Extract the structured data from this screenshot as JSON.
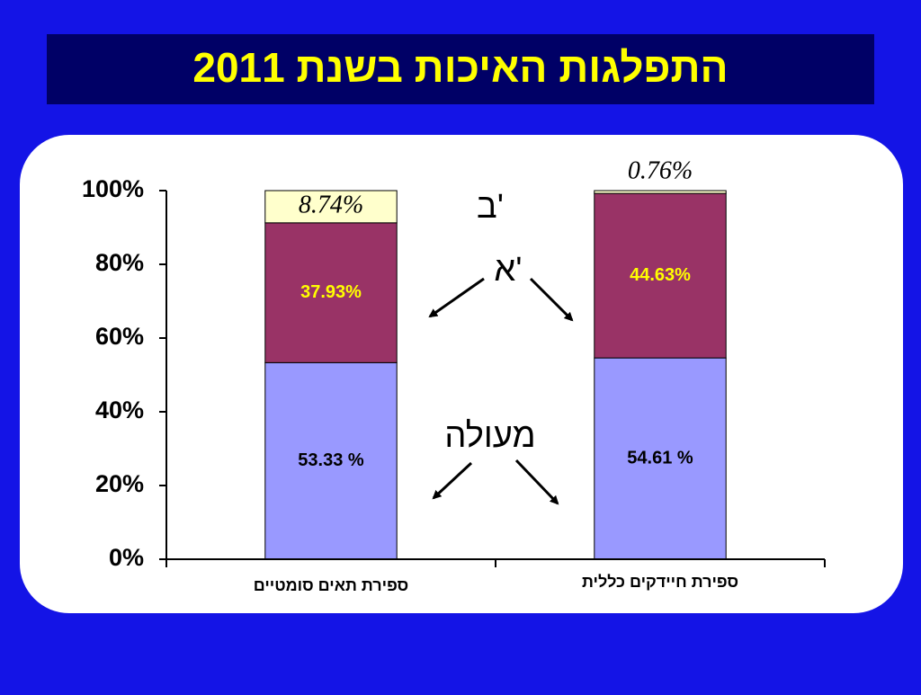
{
  "chart_data": {
    "type": "stacked-bar",
    "title": "התפלגות האיכות בשנת 2011",
    "categories": [
      "ספירת תאים סומטיים",
      "ספירת חיידקים כללית"
    ],
    "series": [
      {
        "name": "מעולה",
        "color": "#9999ff",
        "values": [
          53.33,
          54.61
        ],
        "value_labels": [
          "53.33 %",
          "54.61 %"
        ]
      },
      {
        "name": "א'",
        "color": "#993366",
        "values": [
          37.93,
          44.63
        ],
        "value_labels": [
          "37.93%",
          "44.63%"
        ]
      },
      {
        "name": "ב'",
        "color": "#ffffcc",
        "values": [
          8.74,
          0.76
        ],
        "value_labels": [
          "8.74%",
          "0.76%"
        ]
      }
    ],
    "ylim": [
      0,
      100
    ],
    "yticks": [
      {
        "value": 0,
        "label": "0%"
      },
      {
        "value": 20,
        "label": "20%"
      },
      {
        "value": 40,
        "label": "40%"
      },
      {
        "value": 60,
        "label": "60%"
      },
      {
        "value": 80,
        "label": "80%"
      },
      {
        "value": 100,
        "label": "100%"
      }
    ]
  }
}
